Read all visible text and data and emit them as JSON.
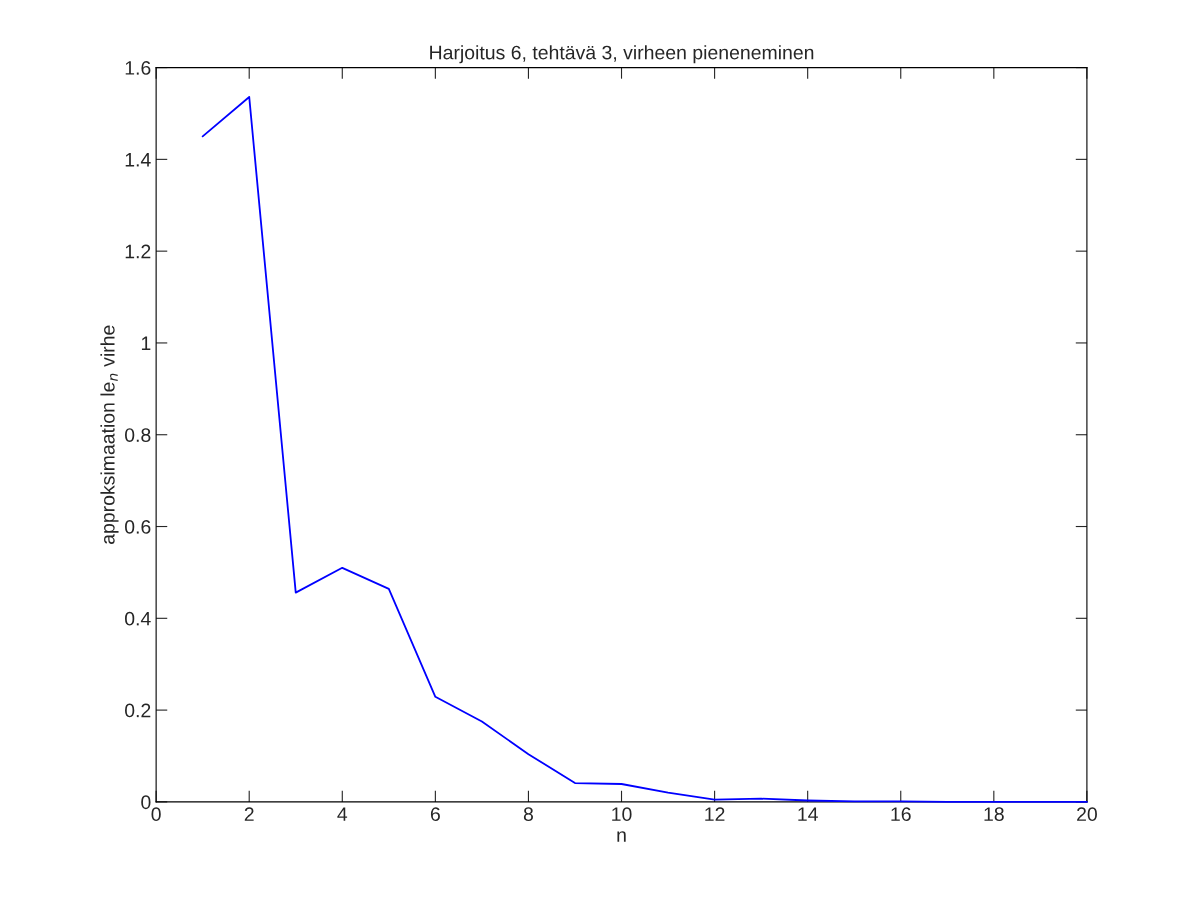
{
  "chart_data": {
    "type": "line",
    "title": "Harjoitus 6, tehtävä 3, virheen pieneneminen",
    "xlabel": "n",
    "ylabel": "approksimaation le$_{n}$ virhe",
    "x": [
      1,
      2,
      3,
      4,
      5,
      6,
      7,
      8,
      9,
      10,
      11,
      12,
      13,
      14,
      15,
      16,
      17,
      18,
      19,
      20
    ],
    "series": [
      {
        "color": "#0000ff",
        "values": [
          1.45,
          1.536,
          0.456,
          0.51,
          0.464,
          0.229,
          0.175,
          0.104,
          0.041,
          0.039,
          0.02,
          0.005,
          0.007,
          0.003,
          0.001,
          0.001,
          0,
          0,
          0,
          0
        ]
      }
    ],
    "xlim": [
      0,
      20
    ],
    "xticks": [
      0,
      2,
      4,
      6,
      8,
      10,
      12,
      14,
      16,
      18,
      20
    ],
    "ylim": [
      0,
      1.6
    ],
    "yticks": [
      0,
      0.2,
      0.4,
      0.6,
      0.8,
      1,
      1.2,
      1.4,
      1.6
    ],
    "grid": false,
    "legend": false,
    "marker": "none",
    "line_style": "solid"
  }
}
